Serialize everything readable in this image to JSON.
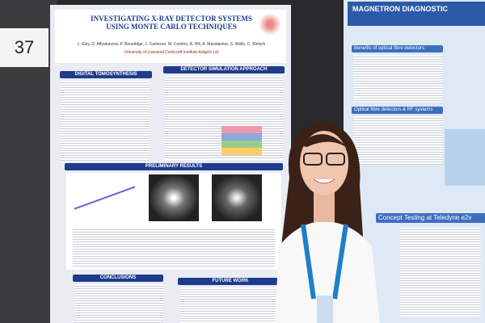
{
  "board_number": "37",
  "left_poster": {
    "title": "INVESTIGATING X-RAY DETECTOR SYSTEMS USING MONTE CARLO TECHNIQUES",
    "authors": "L. Eley, D. Affyatunova, P. Benetidge, J. Cameron, M. Contino, A. Hill, A. Mavalankar, S. Wells, C. Welsch",
    "affiliations": "University of Liverpool  Cockcroft Institute  Adaptix Ltd",
    "sections": [
      "DIGITAL TOMOSYNTHESIS",
      "DETECTOR SIMULATION APPROACH",
      "PRELIMINARY RESULTS",
      "CONCLUSIONS",
      "FUTURE WORK"
    ]
  },
  "right_poster": {
    "title": "MAGNETRON DIAGNOSTIC",
    "sections": [
      "Benefits of optical fibre detectors",
      "Optical fibre detectors & RF systems",
      "Concept Testing at Teledyne e2v"
    ]
  }
}
